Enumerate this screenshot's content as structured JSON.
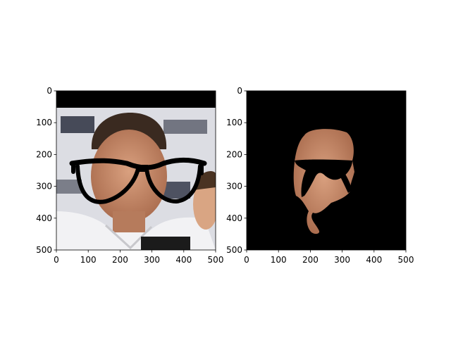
{
  "chart_data": [
    {
      "type": "image",
      "xlim": [
        0,
        500
      ],
      "ylim": [
        500,
        0
      ],
      "x_ticks": [
        "0",
        "100",
        "200",
        "300",
        "400",
        "500"
      ],
      "y_ticks": [
        "0",
        "100",
        "200",
        "300",
        "400",
        "500"
      ],
      "content": "photo-with-glasses",
      "colors": {
        "background_bar": "#000000",
        "glasses": "#000000"
      }
    },
    {
      "type": "image",
      "xlim": [
        0,
        500
      ],
      "ylim": [
        500,
        0
      ],
      "x_ticks": [
        "0",
        "100",
        "200",
        "300",
        "400",
        "500"
      ],
      "y_ticks": [
        "0",
        "100",
        "200",
        "300",
        "400",
        "500"
      ],
      "content": "face-mask-on-black",
      "colors": {
        "background": "#000000",
        "skin": "#c98d6e"
      }
    }
  ]
}
